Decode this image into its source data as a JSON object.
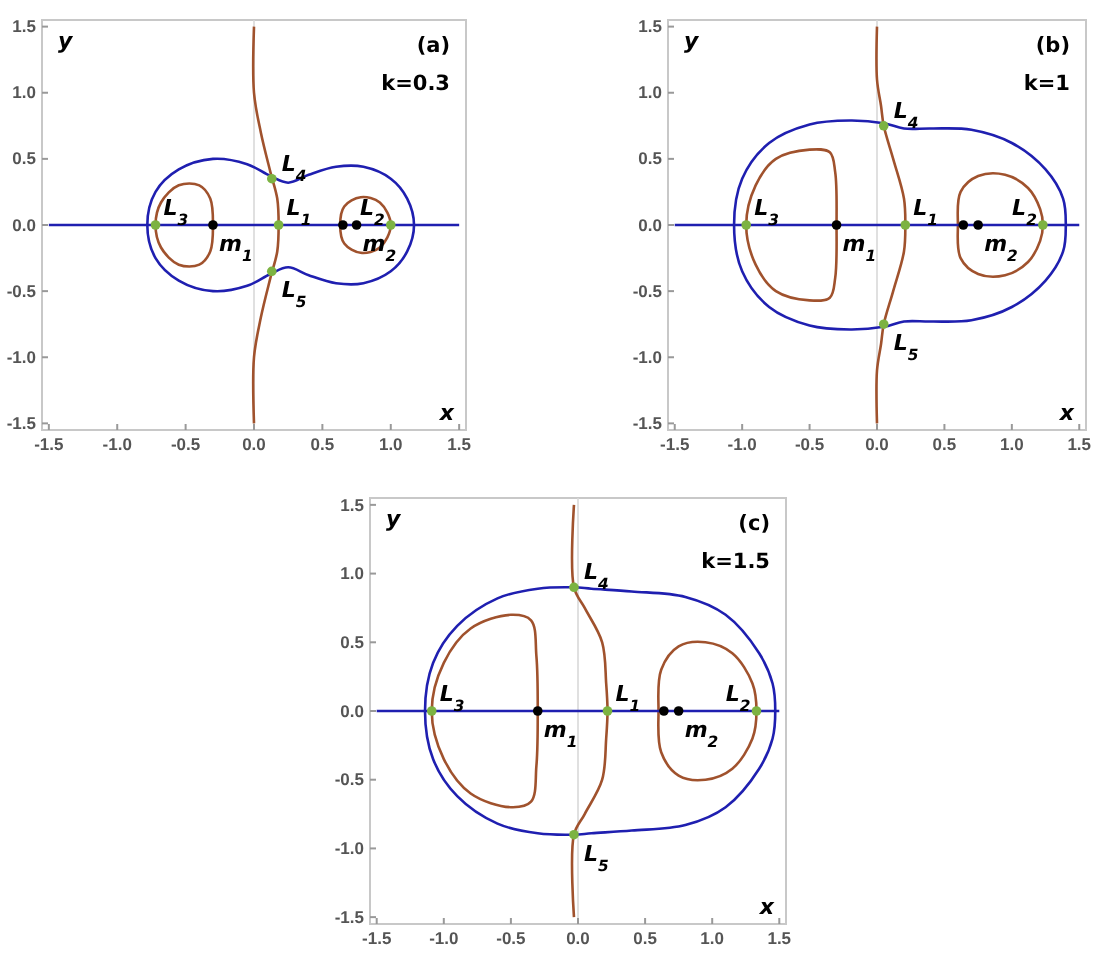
{
  "chart_data": [
    {
      "type": "line",
      "xlabel": "x",
      "ylabel": "y",
      "annotations": [
        "(a)",
        "k=0.3",
        {
          "text": "L$_{1}$",
          "x": 0.18,
          "y": 0
        },
        {
          "text": "L$_{2}$",
          "x": 1.0,
          "y": 0
        },
        {
          "text": "L$_{3}$",
          "x": -0.72,
          "y": 0
        },
        {
          "text": "L$_{4}$",
          "x": 0.13,
          "y": 0.35
        },
        {
          "text": "L$_{5}$",
          "x": 0.13,
          "y": -0.35
        },
        {
          "text": "m$_{1}$",
          "x": -0.3,
          "y": 0
        },
        {
          "text": "m$_{2}$",
          "x": 0.75,
          "y": 0
        }
      ],
      "xlim": [
        -1.55,
        1.55
      ],
      "ylim": [
        -1.55,
        1.55
      ],
      "xticks": [
        -1.5,
        {
          "value": -1,
          "label": "-1.0"
        },
        -0.5,
        {
          "value": 0,
          "label": "0.0"
        },
        0.5,
        {
          "value": 1,
          "label": "1.0"
        },
        1.5
      ],
      "yticks": [
        -1.5,
        {
          "value": -1,
          "label": "-1.0"
        },
        -0.5,
        {
          "value": 0,
          "label": "0.0"
        },
        0.5,
        {
          "value": 1,
          "label": "1.0"
        },
        1.5
      ],
      "ref_lines": [
        {
          "axis": "x",
          "value": 0,
          "color": "#d9d9d9"
        }
      ],
      "marker": "none",
      "series": [
        {
          "color": "#1f1fb0",
          "x": [
            -1.5,
            1.5
          ],
          "values": [
            0,
            0
          ]
        },
        {
          "color": "#a0522d",
          "x": [
            0,
            0,
            0.05,
            0.12,
            0.17,
            0.18,
            0.17,
            0.12,
            0.05,
            0,
            0
          ],
          "values": [
            1.5,
            1.0,
            0.7,
            0.4,
            0.2,
            0,
            -0.2,
            -0.4,
            -0.7,
            -1.0,
            -1.5
          ]
        },
        {
          "type": "scatter",
          "marker": "circle",
          "color": "#7cb342",
          "x": [
            0.18,
            1.0,
            -0.72,
            0.13,
            0.13
          ],
          "values": [
            0,
            0,
            0,
            0.35,
            -0.35
          ]
        },
        {
          "type": "scatter",
          "marker": "circle",
          "color": "#000000",
          "x": [
            -0.3,
            0.65,
            0.75
          ],
          "values": [
            0,
            0,
            0
          ]
        }
      ]
    },
    {
      "type": "line",
      "xlabel": "x",
      "ylabel": "y",
      "annotations": [
        "(b)",
        "k=1",
        {
          "text": "L$_{1}$",
          "x": 0.21,
          "y": 0
        },
        {
          "text": "L$_{2}$",
          "x": 1.23,
          "y": 0
        },
        {
          "text": "L$_{3}$",
          "x": -0.97,
          "y": 0
        },
        {
          "text": "L$_{4}$",
          "x": 0.05,
          "y": 0.75
        },
        {
          "text": "L$_{5}$",
          "x": 0.05,
          "y": -0.75
        },
        {
          "text": "m$_{1}$",
          "x": -0.3,
          "y": 0
        },
        {
          "text": "m$_{2}$",
          "x": 0.75,
          "y": 0
        }
      ],
      "xlim": [
        -1.55,
        1.55
      ],
      "ylim": [
        -1.55,
        1.55
      ],
      "xticks": [
        -1.5,
        {
          "value": -1,
          "label": "-1.0"
        },
        -0.5,
        {
          "value": 0,
          "label": "0.0"
        },
        0.5,
        {
          "value": 1,
          "label": "1.0"
        },
        1.5
      ],
      "yticks": [
        -1.5,
        {
          "value": -1,
          "label": "-1.0"
        },
        -0.5,
        {
          "value": 0,
          "label": "0.0"
        },
        0.5,
        {
          "value": 1,
          "label": "1.0"
        },
        1.5
      ],
      "ref_lines": [
        {
          "axis": "x",
          "value": 0,
          "color": "#d9d9d9"
        }
      ],
      "marker": "none",
      "series": [
        {
          "color": "#1f1fb0",
          "x": [
            -1.5,
            1.5
          ],
          "values": [
            0,
            0
          ]
        },
        {
          "color": "#a0522d",
          "x": [
            0,
            0,
            0.03,
            0.05,
            0.12,
            0.2,
            0.21,
            0.2,
            0.12,
            0.05,
            0.03,
            0,
            0
          ],
          "values": [
            1.5,
            1.1,
            0.9,
            0.75,
            0.5,
            0.2,
            0,
            -0.2,
            -0.5,
            -0.75,
            -0.9,
            -1.1,
            -1.5
          ]
        },
        {
          "type": "scatter",
          "marker": "circle",
          "color": "#7cb342",
          "x": [
            0.21,
            1.23,
            -0.97,
            0.05,
            0.05
          ],
          "values": [
            0,
            0,
            0,
            0.75,
            -0.75
          ]
        },
        {
          "type": "scatter",
          "marker": "circle",
          "color": "#000000",
          "x": [
            -0.3,
            0.64,
            0.75
          ],
          "values": [
            0,
            0,
            0
          ]
        }
      ]
    },
    {
      "type": "line",
      "xlabel": "x",
      "ylabel": "y",
      "annotations": [
        "(c)",
        "k=1.5",
        {
          "text": "L$_{1}$",
          "x": 0.22,
          "y": 0
        },
        {
          "text": "L$_{2}$",
          "x": 1.33,
          "y": 0
        },
        {
          "text": "L$_{3}$",
          "x": -1.09,
          "y": 0
        },
        {
          "text": "L$_{4}$",
          "x": -0.03,
          "y": 0.9
        },
        {
          "text": "L$_{5}$",
          "x": -0.03,
          "y": -0.9
        },
        {
          "text": "m$_{1}$",
          "x": -0.3,
          "y": 0
        },
        {
          "text": "m$_{2}$",
          "x": 0.75,
          "y": 0
        }
      ],
      "xlim": [
        -1.55,
        1.55
      ],
      "ylim": [
        -1.55,
        1.55
      ],
      "xticks": [
        -1.5,
        {
          "value": -1,
          "label": "-1.0"
        },
        -0.5,
        {
          "value": 0,
          "label": "0.0"
        },
        0.5,
        {
          "value": 1,
          "label": "1.0"
        },
        1.5
      ],
      "yticks": [
        -1.5,
        {
          "value": -1,
          "label": "-1.0"
        },
        -0.5,
        {
          "value": 0,
          "label": "0.0"
        },
        0.5,
        {
          "value": 1,
          "label": "1.0"
        },
        1.5
      ],
      "ref_lines": [
        {
          "axis": "x",
          "value": 0,
          "color": "#d9d9d9"
        }
      ],
      "marker": "none",
      "series": [
        {
          "color": "#1f1fb0",
          "x": [
            -1.5,
            1.5
          ],
          "values": [
            0,
            0
          ]
        },
        {
          "color": "#a0522d",
          "x": [
            -0.03,
            -0.03,
            0.05,
            0.18,
            0.21,
            0.22,
            0.21,
            0.18,
            0.05,
            -0.03,
            -0.03
          ],
          "values": [
            1.5,
            0.9,
            0.75,
            0.5,
            0.2,
            0,
            -0.2,
            -0.5,
            -0.75,
            -0.9,
            -1.5
          ]
        },
        {
          "type": "scatter",
          "marker": "circle",
          "color": "#7cb342",
          "x": [
            0.22,
            1.33,
            -1.09,
            -0.03,
            -0.03
          ],
          "values": [
            0,
            0,
            0,
            0.9,
            -0.9
          ]
        },
        {
          "type": "scatter",
          "marker": "circle",
          "color": "#000000",
          "x": [
            -0.3,
            0.64,
            0.75
          ],
          "values": [
            0,
            0,
            0
          ]
        }
      ]
    }
  ]
}
